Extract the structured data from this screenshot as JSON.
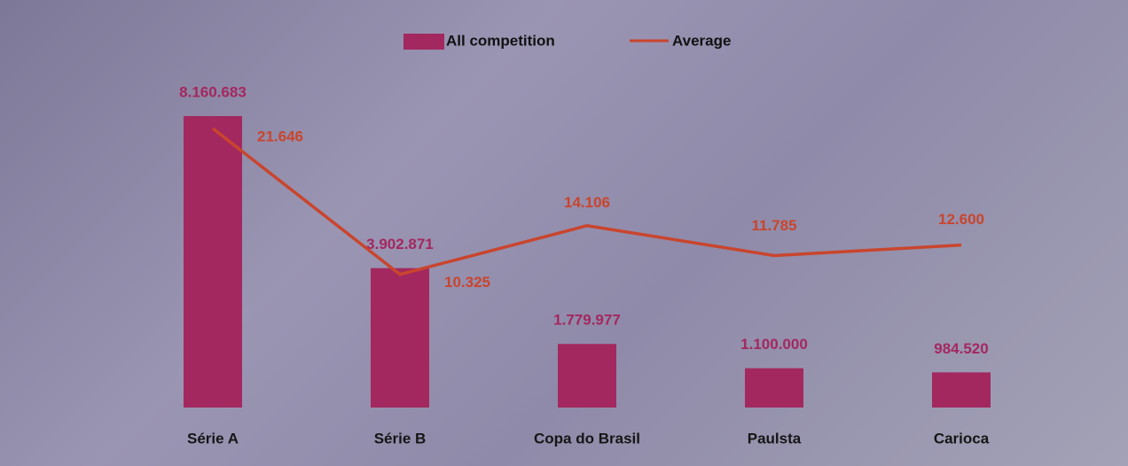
{
  "chart_data": {
    "type": "bar-line",
    "categories": [
      "Série A",
      "Série B",
      "Copa do Brasil",
      "Paulsta",
      "Carioca"
    ],
    "series": [
      {
        "name": "All competition",
        "type": "bar",
        "color": "#a3285f",
        "values": [
          8160683,
          3902871,
          1779977,
          1100000,
          984520
        ],
        "value_labels": [
          "8.160.683",
          "3.902.871",
          "1.779.977",
          "1.100.000",
          "984.520"
        ]
      },
      {
        "name": "Average",
        "type": "line",
        "color": "#c9452d",
        "axis": "y2",
        "values": [
          21646,
          10325,
          14106,
          11785,
          12600
        ],
        "value_labels": [
          "21.646",
          "10.325",
          "14.106",
          "11.785",
          "12.600"
        ]
      }
    ],
    "legend": "top"
  }
}
